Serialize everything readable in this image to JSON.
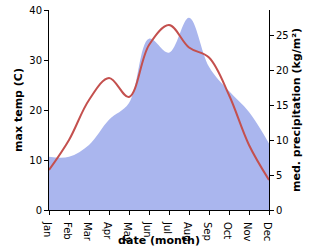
{
  "chart_data": {
    "type": "line",
    "x_label": "date (month)",
    "y_label": "max temp (C)",
    "y2_label": "med. precipitation (kg/m²)",
    "categories": [
      "Jan",
      "Feb",
      "Mar",
      "Apr",
      "May",
      "Jun",
      "Jul",
      "Aug",
      "Sep",
      "Oct",
      "Nov",
      "Dec"
    ],
    "series": [
      {
        "name": "max temp",
        "type": "line",
        "color": "#c4504e",
        "values": [
          8,
          14,
          22,
          26.4,
          22.6,
          33,
          37,
          32.5,
          30.5,
          23,
          13,
          6
        ]
      },
      {
        "name": "med. precipitation",
        "type": "area",
        "axis": "y2",
        "color": "#aab6ee",
        "values": [
          7.6,
          7.6,
          9.3,
          12.9,
          15.3,
          24.5,
          22.5,
          27.5,
          20.5,
          17,
          14,
          9.5
        ]
      }
    ],
    "ylim": [
      0,
      40
    ],
    "yticks": [
      0,
      10,
      20,
      30,
      40
    ],
    "y2lim": [
      0,
      28.6
    ],
    "y2ticks": [
      0,
      5,
      10,
      15,
      20,
      25
    ],
    "grid": false
  }
}
